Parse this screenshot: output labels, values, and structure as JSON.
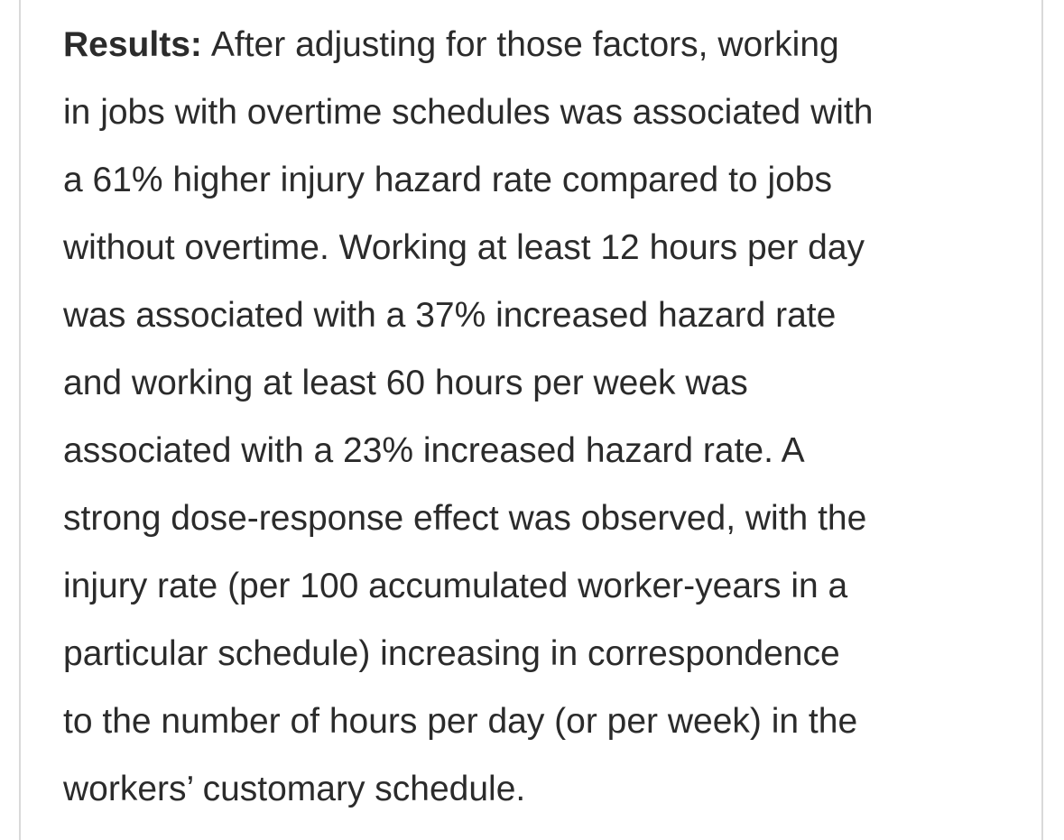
{
  "abstract": {
    "label": "Results:",
    "lines": [
      "After adjusting for those factors, working",
      "in jobs with overtime schedules was associated with",
      "a 61% higher injury hazard rate compared to jobs",
      "without overtime. Working at least 12 hours per day",
      "was associated with a 37% increased hazard rate",
      "and working at least 60 hours per week was",
      "associated with a 23% increased hazard rate. A",
      "strong dose-response effect was observed, with the",
      "injury rate (per 100 accumulated worker-years in a",
      "particular schedule) increasing in correspondence",
      "to the number of hours per day (or per week) in the",
      "workers’ customary schedule."
    ]
  }
}
